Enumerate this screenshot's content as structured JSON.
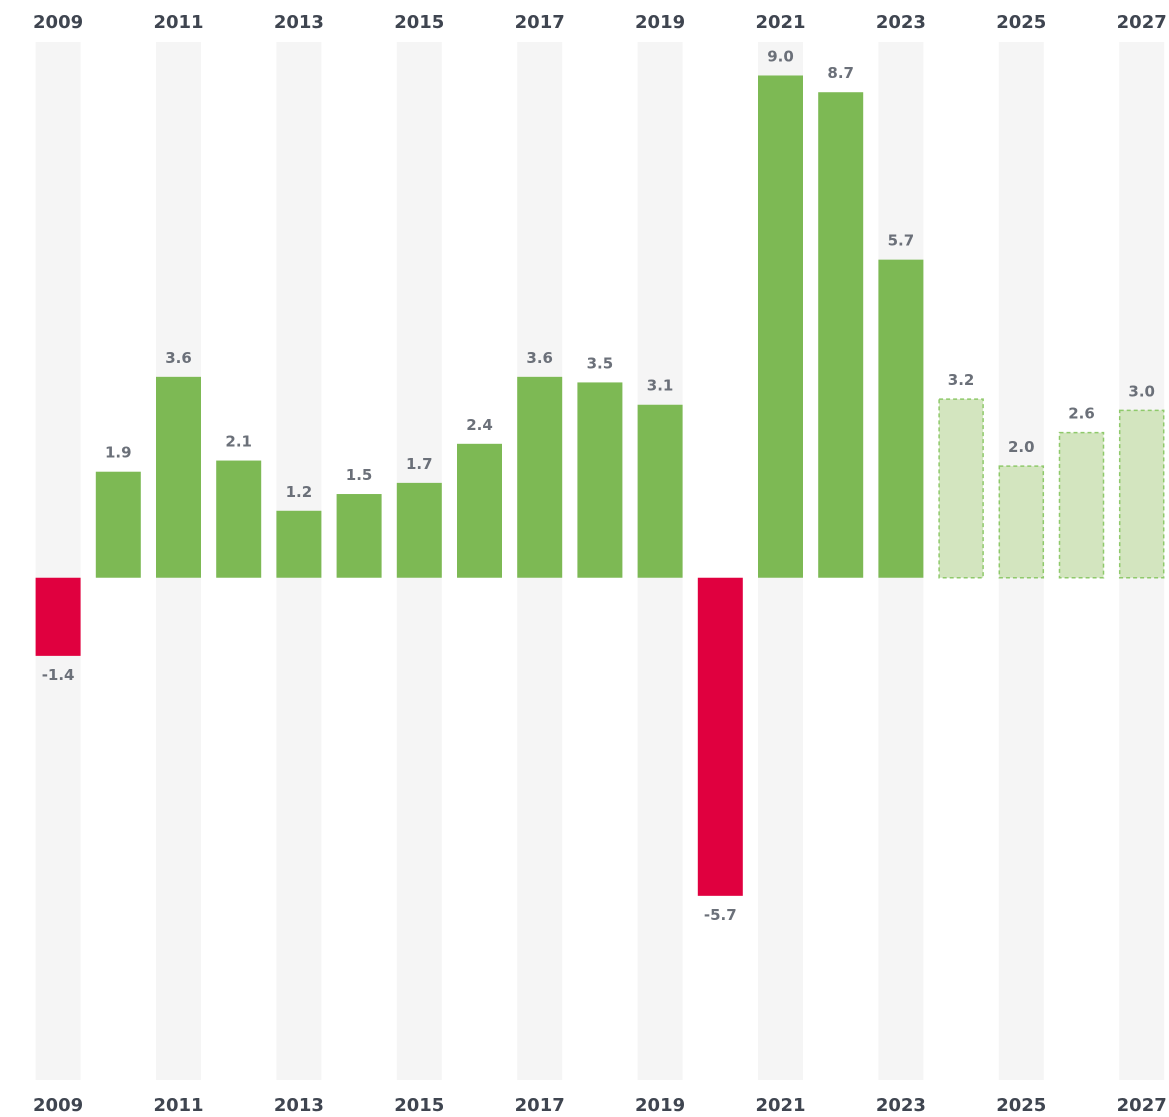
{
  "chart_data": {
    "type": "bar",
    "categories": [
      "2009",
      null,
      "2011",
      null,
      "2013",
      null,
      "2015",
      null,
      "2017",
      null,
      "2019",
      null,
      "2021",
      null,
      "2023",
      null,
      "2025",
      null,
      "2027"
    ],
    "values": [
      -1.4,
      1.9,
      3.6,
      2.1,
      1.2,
      1.5,
      1.7,
      2.4,
      3.6,
      3.5,
      3.1,
      -5.7,
      9,
      8.7,
      5.7,
      3.2,
      2,
      2.6,
      3
    ],
    "value_labels": [
      "-1.4",
      "1.9",
      "3.6",
      "2.1",
      "1.2",
      "1.5",
      "1.7",
      "2.4",
      "3.6",
      "3.5",
      "3.1",
      "-5.7",
      "9.0",
      "8.7",
      "5.7",
      "3.2",
      "2.0",
      "2.6",
      "3.0"
    ],
    "positive_color": "#7db954",
    "negative_color": "#e0003f",
    "forecast_color": "#d3e5bf",
    "forecast_border_color": "#8fc96b",
    "forecast": [
      false,
      false,
      false,
      false,
      false,
      false,
      false,
      false,
      false,
      false,
      false,
      false,
      false,
      false,
      false,
      true,
      true,
      true,
      true
    ],
    "stripe_color": "#f5f5f5",
    "ylim": [
      -9,
      9.6
    ]
  }
}
